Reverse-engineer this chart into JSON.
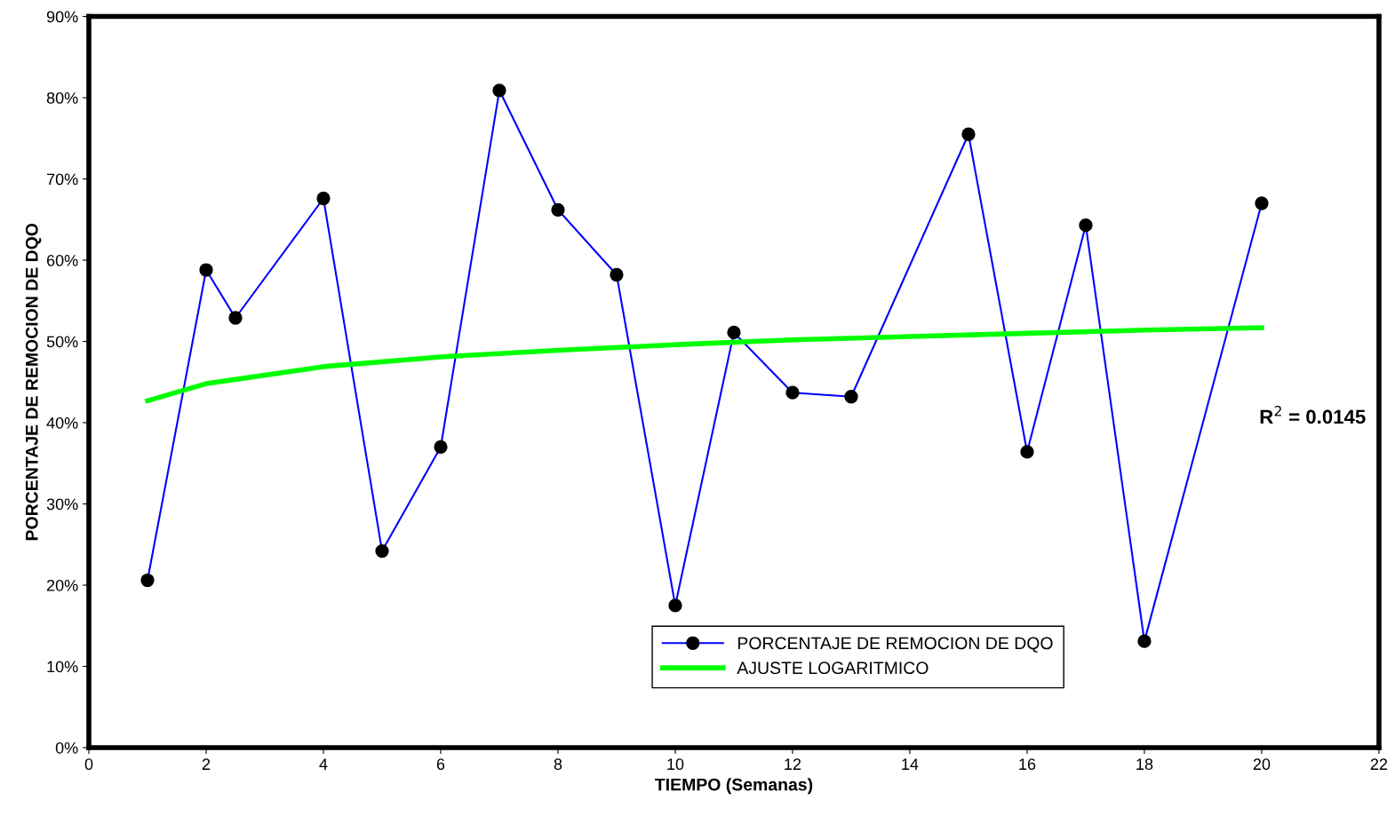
{
  "chart_data": {
    "type": "line",
    "xlabel": "TIEMPO (Semanas)",
    "ylabel": "PORCENTAJE DE REMOCION DE DQO",
    "xlim": [
      0,
      22
    ],
    "xticks": [
      0,
      2,
      4,
      6,
      8,
      10,
      12,
      14,
      16,
      18,
      20,
      22
    ],
    "ylim": [
      0,
      90
    ],
    "yticks": [
      {
        "value": 0,
        "label": "0%"
      },
      {
        "value": 10,
        "label": "10%"
      },
      {
        "value": 20,
        "label": "20%"
      },
      {
        "value": 30,
        "label": "30%"
      },
      {
        "value": 40,
        "label": "40%"
      },
      {
        "value": 50,
        "label": "50%"
      },
      {
        "value": 60,
        "label": "60%"
      },
      {
        "value": 70,
        "label": "70%"
      },
      {
        "value": 80,
        "label": "80%"
      },
      {
        "value": 90,
        "label": "90%"
      }
    ],
    "grid": false,
    "legend": "bottom",
    "series": [
      {
        "name": "PORCENTAJE DE REMOCION DE DQO",
        "color": "#0000ff",
        "marker": "circle",
        "x": [
          1,
          2,
          2.5,
          4,
          5,
          6,
          7,
          8,
          9,
          10,
          11,
          12,
          13,
          15,
          16,
          17,
          18,
          20
        ],
        "values": [
          20.6,
          58.8,
          52.9,
          67.6,
          24.2,
          37.0,
          80.9,
          66.2,
          58.2,
          17.5,
          51.1,
          43.7,
          43.2,
          75.5,
          36.4,
          64.3,
          13.1,
          67.0
        ],
        "colors": [
          "#000000",
          "#000000",
          "#000000",
          "#000000",
          "#000000",
          "#000000",
          "#000000",
          "#000000",
          "#000000",
          "#000000",
          "#000000",
          "#000000",
          "#000000",
          "#000000",
          "#000000",
          "#000000",
          "#000000",
          "#000000"
        ]
      },
      {
        "name": "AJUSTE LOGARITMICO",
        "color": "#00ff00",
        "marker": "none",
        "x": [
          1,
          2,
          4,
          6,
          8,
          10,
          12,
          14,
          16,
          18,
          20
        ],
        "values": [
          42.7,
          44.8,
          46.9,
          48.1,
          48.9,
          49.6,
          50.2,
          50.6,
          51.0,
          51.4,
          51.7
        ]
      }
    ],
    "annotations": [
      "R$^{2}$ = 0.0145"
    ]
  }
}
